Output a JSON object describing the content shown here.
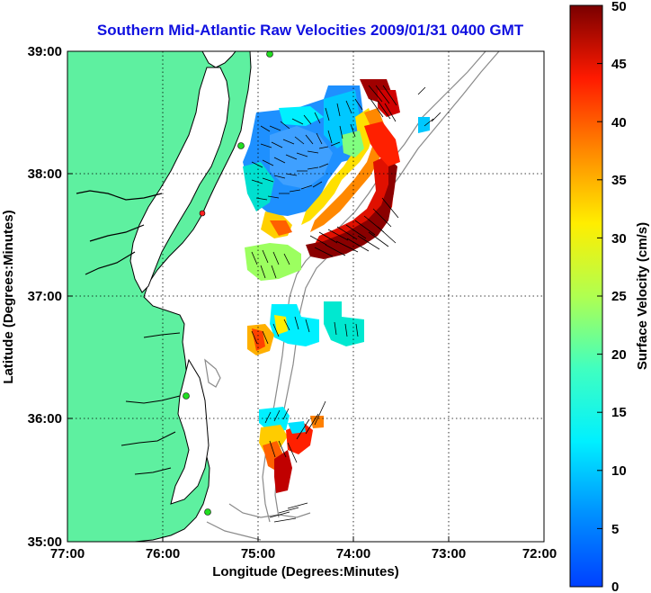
{
  "title": "Southern Mid-Atlantic Raw Velocities 2009/01/31 0400 GMT",
  "map": {
    "xlabel": "Longitude (Degrees:Minutes)",
    "ylabel": "Latitude (Degrees:Minutes)",
    "x_ticks": [
      "77:00",
      "76:00",
      "75:00",
      "74:00",
      "73:00",
      "72:00"
    ],
    "y_ticks": [
      "39:00",
      "38:00",
      "37:00",
      "36:00",
      "35:00"
    ],
    "grid": "dotted",
    "land_color": "#5ef0a0",
    "coast_color": "#000000",
    "isobath_color": "#8a8a8a"
  },
  "colorbar": {
    "label": "Surface Velocity (cm/s)",
    "ticks": [
      "50",
      "45",
      "40",
      "35",
      "30",
      "25",
      "20",
      "15",
      "10",
      "5",
      "0"
    ],
    "min": 0,
    "max": 50,
    "colormap": "jet"
  }
}
